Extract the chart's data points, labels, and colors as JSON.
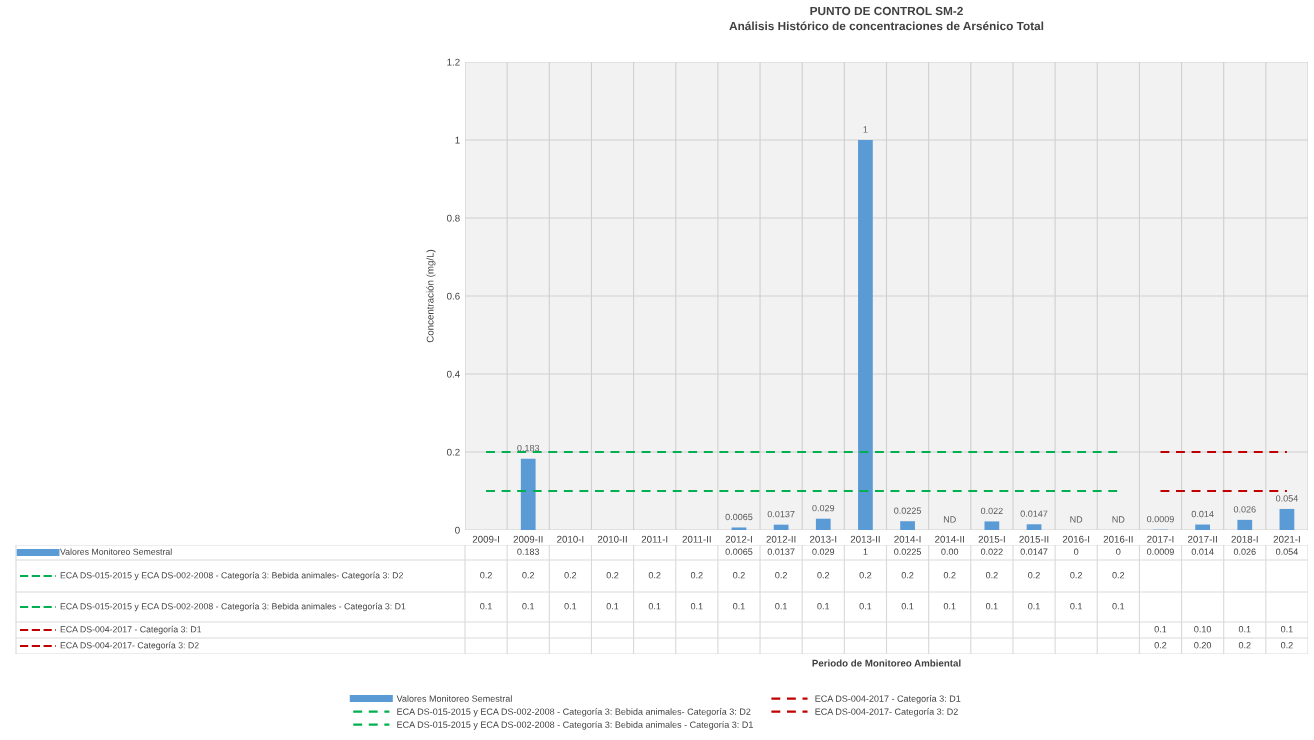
{
  "chart_data": {
    "type": "bar",
    "title": "PUNTO DE CONTROL SM-2",
    "subtitle": "Análisis Histórico de concentraciones de Arsénico Total",
    "ylabel": "Concentración (mg/L)",
    "categories": [
      "2009-I",
      "2009-II",
      "2010-I",
      "2010-II",
      "2011-I",
      "2011-II",
      "2012-I",
      "2012-II",
      "2013-I",
      "2013-II",
      "2014-I",
      "2014-II",
      "2015-I",
      "2015-II",
      "2016-I",
      "2016-II",
      "2017-I",
      "2017-II",
      "2018-I",
      "2021-I"
    ],
    "series": [
      {
        "name": "Valores Monitoreo Semestral",
        "color": "#5b9bd5",
        "values": [
          null,
          0.183,
          null,
          null,
          null,
          null,
          0.0065,
          0.0137,
          0.029,
          1,
          0.0225,
          0,
          0.022,
          0.0147,
          0,
          0,
          0.0009,
          0.014,
          0.026,
          0.054
        ],
        "value_labels": [
          null,
          "0.183",
          null,
          null,
          null,
          null,
          "0.0065",
          "0.0137",
          "0.029",
          "1",
          "0.0225",
          "0.00",
          "0.022",
          "0.0147",
          "0",
          "0",
          "0.0009",
          "0.014",
          "0.026",
          "0.054"
        ]
      },
      {
        "name": "ECA DS-015-2015 y ECA DS-002-2008 - Categoría 3: Bebida animales- Categoría 3: D2",
        "type": "line",
        "line_style": "dashed",
        "color": "#00b050",
        "values": [
          0.2,
          0.2,
          0.2,
          0.2,
          0.2,
          0.2,
          0.2,
          0.2,
          0.2,
          0.2,
          0.2,
          0.2,
          0.2,
          0.2,
          0.2,
          0.2,
          null,
          null,
          null,
          null
        ],
        "value_labels": [
          "0.2",
          "0.2",
          "0.2",
          "0.2",
          "0.2",
          "0.2",
          "0.2",
          "0.2",
          "0.2",
          "0.2",
          "0.2",
          "0.2",
          "0.2",
          "0.2",
          "0.2",
          "0.2",
          null,
          null,
          null,
          null
        ]
      },
      {
        "name": "ECA DS-015-2015 y ECA DS-002-2008 - Categoría 3: Bebida animales - Categoría 3: D1",
        "type": "line",
        "line_style": "dashed",
        "color": "#00b050",
        "values": [
          0.1,
          0.1,
          0.1,
          0.1,
          0.1,
          0.1,
          0.1,
          0.1,
          0.1,
          0.1,
          0.1,
          0.1,
          0.1,
          0.1,
          0.1,
          0.1,
          null,
          null,
          null,
          null
        ],
        "value_labels": [
          "0.1",
          "0.1",
          "0.1",
          "0.1",
          "0.1",
          "0.1",
          "0.1",
          "0.1",
          "0.1",
          "0.1",
          "0.1",
          "0.1",
          "0.1",
          "0.1",
          "0.1",
          "0.1",
          null,
          null,
          null,
          null
        ]
      },
      {
        "name": "ECA DS-004-2017 - Categoría 3: D1",
        "type": "line",
        "line_style": "dashed",
        "color": "#c00000",
        "values": [
          null,
          null,
          null,
          null,
          null,
          null,
          null,
          null,
          null,
          null,
          null,
          null,
          null,
          null,
          null,
          null,
          0.1,
          0.1,
          0.1,
          0.1
        ],
        "value_labels": [
          null,
          null,
          null,
          null,
          null,
          null,
          null,
          null,
          null,
          null,
          null,
          null,
          null,
          null,
          null,
          null,
          "0.1",
          "0.10",
          "0.1",
          "0.1"
        ]
      },
      {
        "name": "ECA DS-004-2017- Categoría 3: D2",
        "type": "line",
        "line_style": "dashed",
        "color": "#c00000",
        "values": [
          null,
          null,
          null,
          null,
          null,
          null,
          null,
          null,
          null,
          null,
          null,
          null,
          null,
          null,
          null,
          null,
          0.2,
          0.2,
          0.2,
          0.2
        ],
        "value_labels": [
          null,
          null,
          null,
          null,
          null,
          null,
          null,
          null,
          null,
          null,
          null,
          null,
          null,
          null,
          null,
          null,
          "0.2",
          "0.20",
          "0.2",
          "0.2"
        ]
      }
    ],
    "annotations": [
      "Periodo de Monitoreo Ambiental",
      {
        "text": "0.183",
        "x": "2009-II",
        "y": 0.183
      },
      {
        "text": "0.0065",
        "x": "2012-I",
        "y": 0.0065
      },
      {
        "text": "0.0137",
        "x": "2012-II",
        "y": 0.0137
      },
      {
        "text": "0.029",
        "x": "2013-I",
        "y": 0.029
      },
      {
        "text": "1",
        "x": "2013-II",
        "y": 1
      },
      {
        "text": "0.0225",
        "x": "2014-I",
        "y": 0.0225
      },
      {
        "text": "ND",
        "x": "2014-II",
        "y": 0
      },
      {
        "text": "0.022",
        "x": "2015-I",
        "y": 0.022
      },
      {
        "text": "0.0147",
        "x": "2015-II",
        "y": 0.0147
      },
      {
        "text": "ND",
        "x": "2016-I",
        "y": 0
      },
      {
        "text": "ND",
        "x": "2016-II",
        "y": 0
      },
      {
        "text": "0.0009",
        "x": "2017-I",
        "y": 0.0009
      },
      {
        "text": "0.014",
        "x": "2017-II",
        "y": 0.014
      },
      {
        "text": "0.026",
        "x": "2018-I",
        "y": 0.026
      },
      {
        "text": "0.054",
        "x": "2021-I",
        "y": 0.054
      }
    ],
    "ylim": [
      0,
      1.2
    ],
    "yticks": [
      0,
      0.2,
      0.4,
      0.6,
      0.8,
      1,
      1.2
    ],
    "grid": true,
    "legend": "bottom"
  }
}
